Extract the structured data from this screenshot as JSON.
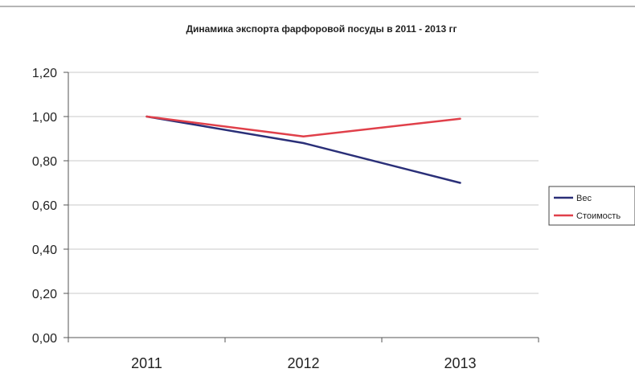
{
  "chart_data": {
    "type": "line",
    "title": "Динамика экспорта фарфоровой посуды в 2011 - 2013 гг",
    "categories": [
      "2011",
      "2012",
      "2013"
    ],
    "y_ticks": [
      "0,00",
      "0,20",
      "0,40",
      "0,60",
      "0,80",
      "1,00",
      "1,20"
    ],
    "ylim": [
      0,
      1.2
    ],
    "grid": true,
    "legend_position": "right",
    "series": [
      {
        "name": "Вес",
        "values": [
          1.0,
          0.88,
          0.7
        ],
        "color": "#2a2f78"
      },
      {
        "name": "Стоимость",
        "values": [
          1.0,
          0.91,
          0.99
        ],
        "color": "#e0404a"
      }
    ]
  }
}
